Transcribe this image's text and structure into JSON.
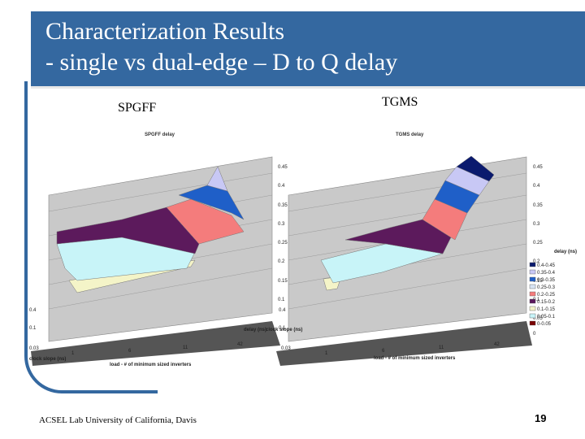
{
  "slide": {
    "title_line1": "Characterization Results",
    "title_line2": "-  single vs dual-edge – D to Q delay",
    "footer": "ACSEL Lab University of California, Davis",
    "page_number": "19",
    "colors": {
      "title_bar": "#3468a0",
      "accent": "#3468a0"
    }
  },
  "chart_data": [
    {
      "type": "surface",
      "panel_label": "SPGFF",
      "title": "SPGFF delay",
      "zlabel": "delay (ns)",
      "xlabel": "load - # of minimum sized inverters",
      "ylabel": "clock slope (ns)",
      "z_ticks": [
        "0.45",
        "0.4",
        "0.35",
        "0.3",
        "0.25",
        "0.2",
        "0.15",
        "0.1"
      ],
      "x_ticks": [
        "1",
        "6",
        "11",
        "42"
      ],
      "y_ticks": [
        "0.4",
        "0.1",
        "0.03"
      ],
      "zlim": [
        0.1,
        0.45
      ]
    },
    {
      "type": "surface",
      "panel_label": "TGMS",
      "title": "TGMS delay",
      "zlabel": "delay (ns)",
      "xlabel": "load - # of minimum sized inverters",
      "ylabel": "clock slope (ns)",
      "z_ticks": [
        "0.45",
        "0.4",
        "0.35",
        "0.3",
        "0.25",
        "0.2",
        "0.15",
        "0.1",
        "0.05",
        "0"
      ],
      "x_ticks": [
        "1",
        "6",
        "11",
        "42"
      ],
      "y_ticks": [
        "0.4",
        "0.1",
        "0.03"
      ],
      "zlim": [
        0,
        0.45
      ],
      "legend_position": "right",
      "legend": [
        {
          "label": "0.4-0.45",
          "color": "#0a1a6e"
        },
        {
          "label": "0.35-0.4",
          "color": "#c8c8f5"
        },
        {
          "label": "0.3-0.35",
          "color": "#1f5fc8"
        },
        {
          "label": "0.25-0.3",
          "color": "#d8e4f4"
        },
        {
          "label": "0.2-0.25",
          "color": "#f47c7c"
        },
        {
          "label": "0.15-0.2",
          "color": "#5c1a5c"
        },
        {
          "label": "0.1-0.15",
          "color": "#f4f4c8"
        },
        {
          "label": "0.05-0.1",
          "color": "#c8f4f8"
        },
        {
          "label": "0-0.05",
          "color": "#7a0000"
        }
      ]
    }
  ]
}
